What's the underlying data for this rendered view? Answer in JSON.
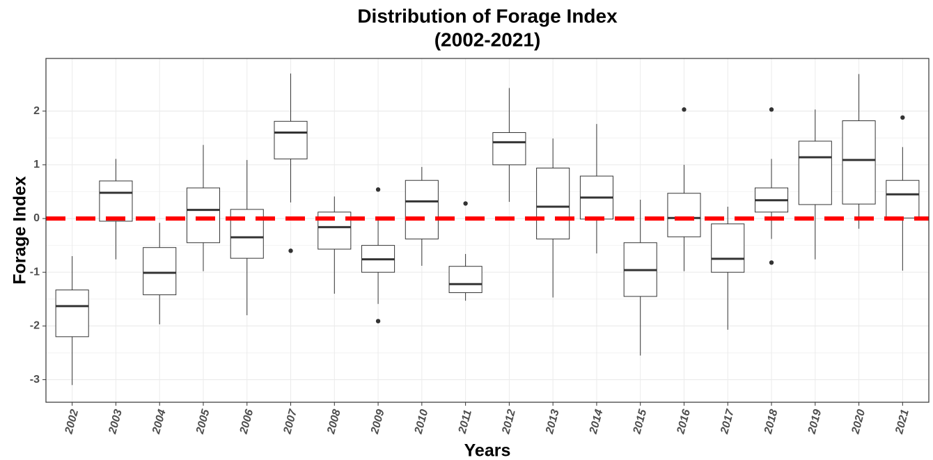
{
  "chart_data": {
    "type": "box",
    "title": "Distribution of Forage Index",
    "subtitle": "(2002-2021)",
    "x_label": "Years",
    "y_label": "Forage Index",
    "categories": [
      "2002",
      "2003",
      "2004",
      "2005",
      "2006",
      "2007",
      "2008",
      "2009",
      "2010",
      "2011",
      "2012",
      "2013",
      "2014",
      "2015",
      "2016",
      "2017",
      "2018",
      "2019",
      "2020",
      "2021"
    ],
    "boxes": [
      {
        "whisker_low": -3.1,
        "q1": -2.2,
        "median": -1.63,
        "q3": -1.33,
        "whisker_high": -0.7,
        "outliers": []
      },
      {
        "whisker_low": -0.76,
        "q1": -0.05,
        "median": 0.48,
        "q3": 0.7,
        "whisker_high": 1.11,
        "outliers": []
      },
      {
        "whisker_low": -1.97,
        "q1": -1.42,
        "median": -1.01,
        "q3": -0.54,
        "whisker_high": -0.08,
        "outliers": []
      },
      {
        "whisker_low": -0.98,
        "q1": -0.45,
        "median": 0.16,
        "q3": 0.57,
        "whisker_high": 1.37,
        "outliers": []
      },
      {
        "whisker_low": -1.8,
        "q1": -0.74,
        "median": -0.35,
        "q3": 0.17,
        "whisker_high": 1.09,
        "outliers": []
      },
      {
        "whisker_low": 0.3,
        "q1": 1.11,
        "median": 1.6,
        "q3": 1.81,
        "whisker_high": 2.7,
        "outliers": [
          -0.6
        ]
      },
      {
        "whisker_low": -1.4,
        "q1": -0.57,
        "median": -0.16,
        "q3": 0.12,
        "whisker_high": 0.41,
        "outliers": []
      },
      {
        "whisker_low": -1.59,
        "q1": -1.0,
        "median": -0.76,
        "q3": -0.5,
        "whisker_high": -0.03,
        "outliers": [
          0.54,
          -1.91
        ]
      },
      {
        "whisker_low": -0.88,
        "q1": -0.38,
        "median": 0.32,
        "q3": 0.71,
        "whisker_high": 0.96,
        "outliers": []
      },
      {
        "whisker_low": -1.53,
        "q1": -1.38,
        "median": -1.22,
        "q3": -0.89,
        "whisker_high": -0.66,
        "outliers": [
          0.28
        ]
      },
      {
        "whisker_low": 0.31,
        "q1": 1.0,
        "median": 1.42,
        "q3": 1.6,
        "whisker_high": 2.43,
        "outliers": []
      },
      {
        "whisker_low": -1.47,
        "q1": -0.38,
        "median": 0.22,
        "q3": 0.94,
        "whisker_high": 1.49,
        "outliers": []
      },
      {
        "whisker_low": -0.65,
        "q1": -0.01,
        "median": 0.39,
        "q3": 0.79,
        "whisker_high": 1.76,
        "outliers": []
      },
      {
        "whisker_low": -2.55,
        "q1": -1.45,
        "median": -0.96,
        "q3": -0.45,
        "whisker_high": 0.35,
        "outliers": []
      },
      {
        "whisker_low": -0.98,
        "q1": -0.34,
        "median": 0.01,
        "q3": 0.47,
        "whisker_high": 1.0,
        "outliers": [
          2.03
        ]
      },
      {
        "whisker_low": -2.07,
        "q1": -1.0,
        "median": -0.75,
        "q3": -0.1,
        "whisker_high": 0.22,
        "outliers": []
      },
      {
        "whisker_low": -0.38,
        "q1": 0.12,
        "median": 0.34,
        "q3": 0.57,
        "whisker_high": 1.11,
        "outliers": [
          2.03,
          -0.82
        ]
      },
      {
        "whisker_low": -0.76,
        "q1": 0.26,
        "median": 1.14,
        "q3": 1.44,
        "whisker_high": 2.03,
        "outliers": []
      },
      {
        "whisker_low": -0.19,
        "q1": 0.27,
        "median": 1.09,
        "q3": 1.82,
        "whisker_high": 2.69,
        "outliers": []
      },
      {
        "whisker_low": -0.97,
        "q1": 0.01,
        "median": 0.45,
        "q3": 0.71,
        "whisker_high": 1.33,
        "outliers": [
          1.88
        ]
      }
    ],
    "reference_line": {
      "value": 0,
      "color": "#ff0000"
    },
    "box_color": "#333333",
    "ylim": [
      -3.42,
      2.98
    ],
    "yticks": [
      -3,
      -2,
      -1,
      0,
      1,
      2
    ],
    "grid": true
  }
}
